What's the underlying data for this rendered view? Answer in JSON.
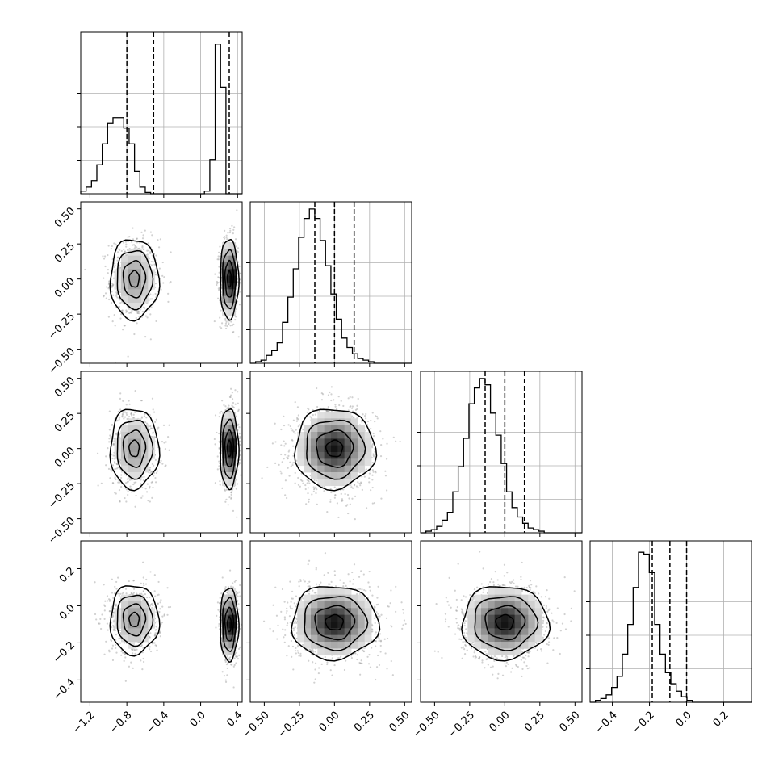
{
  "chart_data": {
    "type": "corner",
    "title": "",
    "n_params": 4,
    "colors": {
      "line": "#000000",
      "grid": "#b0b0b0",
      "scatter": "#9a9a9a"
    },
    "grid": true,
    "ranges": [
      [
        -1.3,
        0.45
      ],
      [
        -0.6,
        0.55
      ],
      [
        -0.6,
        0.55
      ],
      [
        -0.52,
        0.35
      ]
    ],
    "ticks": [
      [
        -1.2,
        -0.8,
        -0.4,
        0.0,
        0.4
      ],
      [
        -0.5,
        -0.25,
        0.0,
        0.25,
        0.5
      ],
      [
        -0.5,
        -0.25,
        0.0,
        0.25,
        0.5
      ],
      [
        -0.4,
        -0.2,
        0.0,
        0.2
      ]
    ],
    "tick_labels": [
      [
        "−1.2",
        "−0.8",
        "−0.4",
        "0.0",
        "0.4"
      ],
      [
        "−0.50",
        "−0.25",
        "0.00",
        "0.25",
        "0.50"
      ],
      [
        "−0.50",
        "−0.25",
        "0.00",
        "0.25",
        "0.50"
      ],
      [
        "−0.4",
        "−0.2",
        "0.0",
        "0.2"
      ]
    ],
    "quantiles": [
      [
        -0.8,
        -0.51,
        0.31
      ],
      [
        -0.14,
        0.0,
        0.14
      ],
      [
        -0.14,
        0.0,
        0.14
      ],
      [
        -0.185,
        -0.09,
        0.0
      ]
    ],
    "histograms": [
      {
        "param": 0,
        "edges_start": -1.3,
        "bin_width": 0.0583,
        "counts": [
          2,
          5,
          10,
          22,
          38,
          54,
          58,
          58,
          50,
          38,
          17,
          5,
          1,
          0,
          0,
          0,
          0,
          0,
          0,
          0,
          0,
          0,
          0,
          2,
          26,
          114,
          81,
          0,
          0,
          0
        ],
        "ymax": 120
      },
      {
        "param": 1,
        "edges_start": -0.6,
        "bin_width": 0.0383,
        "counts": [
          0,
          1,
          2,
          5,
          8,
          13,
          26,
          42,
          60,
          80,
          92,
          98,
          92,
          78,
          62,
          44,
          28,
          16,
          10,
          6,
          3,
          2,
          1,
          0,
          0,
          0,
          0,
          0,
          0,
          0
        ],
        "ymax": 100
      },
      {
        "param": 2,
        "edges_start": -0.6,
        "bin_width": 0.0383,
        "counts": [
          0,
          1,
          2,
          4,
          8,
          13,
          26,
          42,
          60,
          82,
          92,
          98,
          94,
          76,
          62,
          44,
          26,
          16,
          10,
          6,
          3,
          2,
          1,
          0,
          0,
          0,
          0,
          0,
          0,
          0
        ],
        "ymax": 100
      },
      {
        "param": 3,
        "edges_start": -0.52,
        "bin_width": 0.029,
        "counts": [
          0,
          1,
          2,
          4,
          8,
          14,
          26,
          42,
          62,
          81,
          80,
          70,
          42,
          26,
          16,
          10,
          6,
          3,
          1,
          0,
          0,
          0,
          0,
          0,
          0,
          0,
          0,
          0,
          0,
          0
        ],
        "ymax": 85
      }
    ],
    "pair_density": [
      {
        "row": 1,
        "col": 0,
        "components": [
          {
            "cx": -0.72,
            "cy": 0.0,
            "sx": 0.12,
            "sy": 0.13,
            "weight": 0.5
          },
          {
            "cx": 0.31,
            "cy": 0.0,
            "sx": 0.045,
            "sy": 0.13,
            "weight": 0.5
          }
        ]
      },
      {
        "row": 2,
        "col": 0,
        "components": [
          {
            "cx": -0.72,
            "cy": 0.0,
            "sx": 0.12,
            "sy": 0.13,
            "weight": 0.5
          },
          {
            "cx": 0.31,
            "cy": 0.0,
            "sx": 0.045,
            "sy": 0.13,
            "weight": 0.5
          }
        ]
      },
      {
        "row": 2,
        "col": 1,
        "components": [
          {
            "cx": 0.0,
            "cy": 0.0,
            "sx": 0.13,
            "sy": 0.13,
            "weight": 1.0
          }
        ]
      },
      {
        "row": 3,
        "col": 0,
        "components": [
          {
            "cx": -0.72,
            "cy": -0.075,
            "sx": 0.12,
            "sy": 0.085,
            "weight": 0.5
          },
          {
            "cx": 0.31,
            "cy": -0.1,
            "sx": 0.045,
            "sy": 0.09,
            "weight": 0.5
          }
        ]
      },
      {
        "row": 3,
        "col": 1,
        "components": [
          {
            "cx": 0.0,
            "cy": -0.09,
            "sx": 0.14,
            "sy": 0.09,
            "weight": 1.0
          }
        ]
      },
      {
        "row": 3,
        "col": 2,
        "components": [
          {
            "cx": 0.0,
            "cy": -0.09,
            "sx": 0.14,
            "sy": 0.09,
            "weight": 1.0
          }
        ]
      }
    ]
  }
}
